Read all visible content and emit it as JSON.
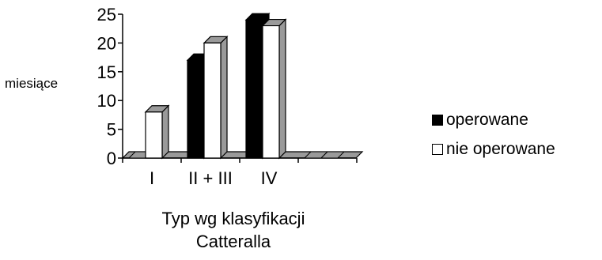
{
  "chart_data": {
    "type": "bar",
    "style": "3d-clustered-column",
    "categories": [
      "I",
      "II + III",
      "IV",
      ""
    ],
    "series": [
      {
        "name": "operowane",
        "color": "#000000",
        "values": [
          0,
          17,
          24,
          0
        ]
      },
      {
        "name": "nie operowane",
        "color": "#ffffff",
        "values": [
          8,
          20,
          23,
          0
        ]
      }
    ],
    "yticks": [
      "0",
      "5",
      "10",
      "15",
      "20",
      "25"
    ],
    "ylim": [
      0,
      25
    ],
    "ylabel": "miesiące",
    "xlabel_lines": [
      "Typ wg klasyfikacji",
      "Catteralla"
    ],
    "grid": false,
    "legend_position": "right"
  }
}
